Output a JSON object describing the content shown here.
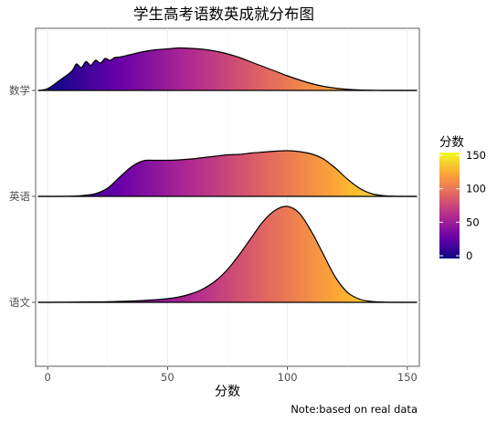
{
  "chart_data": {
    "type": "ridgeline",
    "title": "学生高考语数英成就分布图",
    "xlabel": "分数",
    "ylabel": "",
    "caption": "Note:based on real data",
    "xlim": [
      -5,
      155
    ],
    "x_ticks": [
      0,
      50,
      100,
      150
    ],
    "grid": true,
    "fill_gradient": {
      "variable": "分数",
      "palette": "plasma",
      "range": [
        0,
        150
      ],
      "stops": [
        "#0d0887",
        "#6a00a8",
        "#b12a90",
        "#e16462",
        "#fca636",
        "#f0f921"
      ]
    },
    "legend": {
      "title": "分数",
      "position": "right",
      "ticks": [
        0,
        50,
        100,
        150
      ]
    },
    "series": [
      {
        "name": "数学",
        "x": [
          -4,
          0,
          5,
          10,
          12,
          14,
          16,
          18,
          20,
          22,
          24,
          26,
          28,
          30,
          35,
          40,
          45,
          50,
          55,
          60,
          65,
          70,
          75,
          80,
          85,
          90,
          95,
          100,
          105,
          110,
          115,
          120,
          125,
          130,
          135,
          140,
          145,
          150,
          154
        ],
        "density": [
          0.0,
          0.04,
          0.22,
          0.42,
          0.58,
          0.5,
          0.63,
          0.55,
          0.66,
          0.6,
          0.7,
          0.66,
          0.72,
          0.73,
          0.79,
          0.85,
          0.89,
          0.91,
          0.93,
          0.92,
          0.9,
          0.86,
          0.8,
          0.72,
          0.62,
          0.52,
          0.42,
          0.32,
          0.23,
          0.15,
          0.09,
          0.05,
          0.025,
          0.01,
          0.004,
          0.0,
          0.0,
          0.0,
          0.0
        ]
      },
      {
        "name": "英语",
        "x": [
          -4,
          0,
          10,
          15,
          20,
          25,
          30,
          35,
          40,
          45,
          50,
          55,
          60,
          65,
          70,
          75,
          80,
          85,
          90,
          95,
          100,
          105,
          110,
          115,
          120,
          125,
          130,
          135,
          140,
          145,
          150,
          154
        ],
        "density": [
          0.0,
          0.0,
          0.005,
          0.02,
          0.06,
          0.18,
          0.42,
          0.65,
          0.78,
          0.79,
          0.79,
          0.8,
          0.82,
          0.85,
          0.88,
          0.91,
          0.92,
          0.95,
          0.97,
          0.99,
          1.0,
          0.98,
          0.93,
          0.82,
          0.62,
          0.38,
          0.18,
          0.06,
          0.015,
          0.003,
          0.0,
          0.0
        ]
      },
      {
        "name": "语文",
        "x": [
          -4,
          0,
          20,
          30,
          40,
          50,
          55,
          60,
          65,
          70,
          75,
          80,
          85,
          90,
          95,
          100,
          105,
          110,
          115,
          120,
          125,
          130,
          135,
          140,
          145,
          150,
          154
        ],
        "density": [
          0.0,
          0.0,
          0.01,
          0.02,
          0.04,
          0.08,
          0.12,
          0.19,
          0.3,
          0.47,
          0.72,
          1.05,
          1.42,
          1.78,
          2.02,
          2.1,
          1.95,
          1.55,
          1.05,
          0.55,
          0.22,
          0.07,
          0.02,
          0.005,
          0.0,
          0.0,
          0.0
        ]
      }
    ]
  }
}
